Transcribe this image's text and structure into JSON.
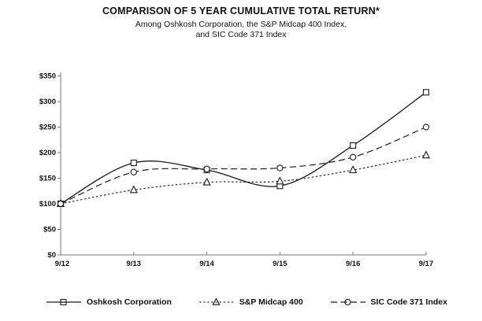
{
  "header": {
    "title": "COMPARISON OF 5 YEAR CUMULATIVE TOTAL RETURN*",
    "subtitle_line1": "Among Oshkosh Corporation, the S&P Midcap 400 Index,",
    "subtitle_line2": "and SIC Code 371 Index"
  },
  "chart_data": {
    "type": "line",
    "title": "COMPARISON OF 5 YEAR CUMULATIVE TOTAL RETURN*",
    "subtitle": "Among Oshkosh Corporation, the S&P Midcap 400 Index, and SIC Code 371 Index",
    "categories": [
      "9/12",
      "9/13",
      "9/14",
      "9/15",
      "9/16",
      "9/17"
    ],
    "series": [
      {
        "name": "Oshkosh Corporation",
        "marker": "square",
        "line_style": "solid",
        "values": [
          100,
          180,
          166,
          135,
          214,
          318
        ]
      },
      {
        "name": "S&P Midcap 400",
        "marker": "triangle",
        "line_style": "dotted",
        "values": [
          100,
          127,
          142,
          144,
          166,
          195
        ]
      },
      {
        "name": "SIC Code 371 Index",
        "marker": "circle",
        "line_style": "dashed",
        "values": [
          100,
          162,
          168,
          170,
          191,
          250
        ]
      }
    ],
    "y_tick_labels": [
      "$350",
      "$300",
      "$250",
      "$200",
      "$150",
      "$100",
      "$50",
      "$0"
    ],
    "y_tick_values": [
      350,
      300,
      250,
      200,
      150,
      100,
      50,
      0
    ],
    "ylim": [
      0,
      350
    ],
    "xlabel": "",
    "ylabel": "",
    "grid": false,
    "legend_position": "bottom",
    "line_color": "#1a1a1a",
    "background_color": "#ffffff"
  }
}
